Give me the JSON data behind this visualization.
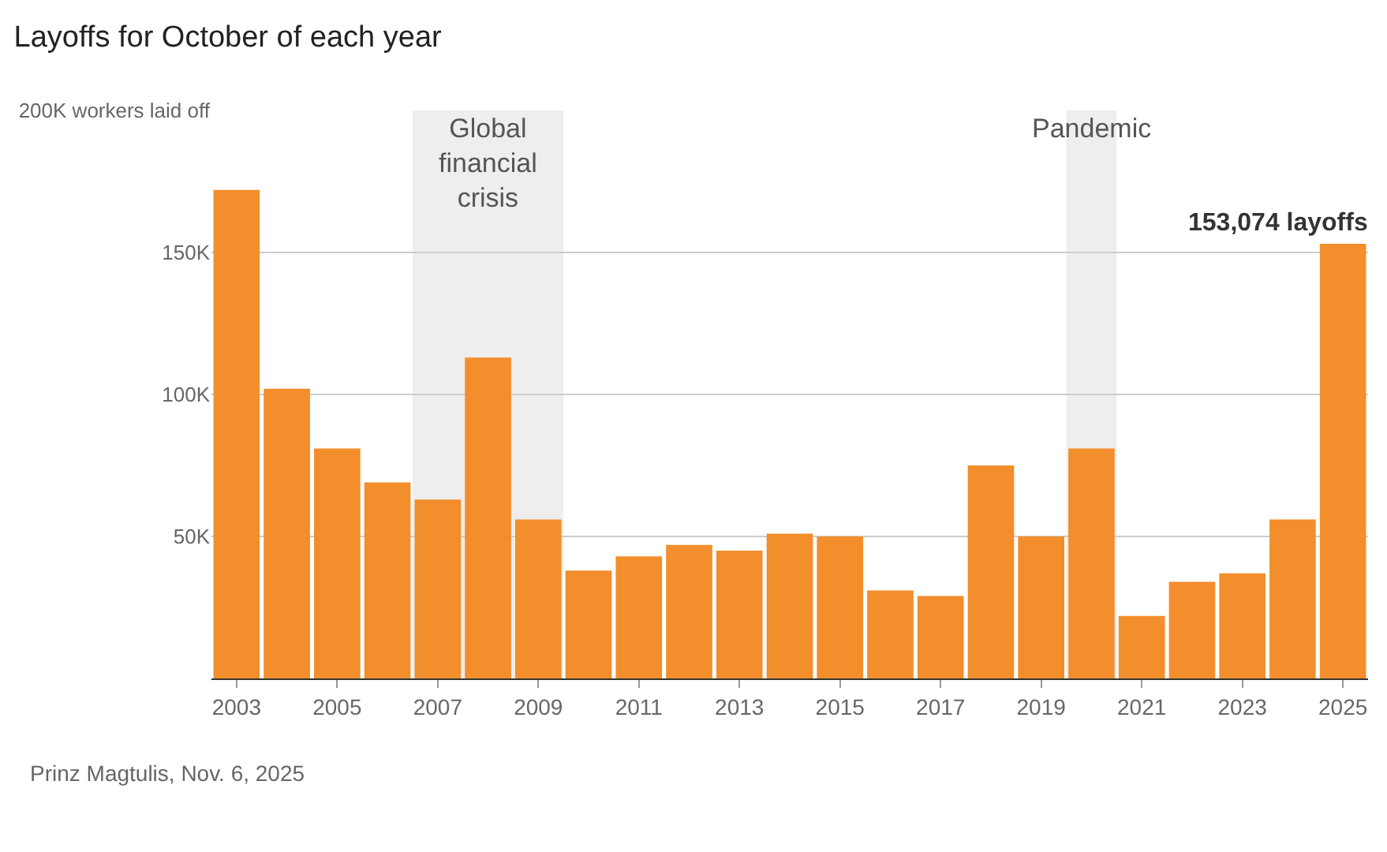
{
  "chart_data": {
    "type": "bar",
    "title": "Layoffs for October of each year",
    "x": [
      2003,
      2004,
      2005,
      2006,
      2007,
      2008,
      2009,
      2010,
      2011,
      2012,
      2013,
      2014,
      2015,
      2016,
      2017,
      2018,
      2019,
      2020,
      2021,
      2022,
      2023,
      2024,
      2025
    ],
    "values": [
      172,
      102,
      81,
      69,
      63,
      113,
      56,
      38,
      43,
      47,
      45,
      51,
      50,
      31,
      29,
      75,
      50,
      81,
      22,
      34,
      37,
      56,
      153.074
    ],
    "color": "#f28e2b",
    "xlim": [
      2002.5,
      2025.5
    ],
    "xticks": [
      2003,
      2005,
      2007,
      2009,
      2011,
      2013,
      2015,
      2017,
      2019,
      2021,
      2023,
      2025
    ],
    "ylim": [
      0,
      200
    ],
    "yticks": [
      {
        "value": 0,
        "label": null
      },
      {
        "value": 50,
        "label": "50K"
      },
      {
        "value": 100,
        "label": "100K"
      },
      {
        "value": 150,
        "label": "150K"
      },
      {
        "value": 200,
        "label": "200K workers laid off"
      }
    ],
    "grid": "y",
    "bands": [
      {
        "axis": "x",
        "from": 2006.5,
        "to": 2009.5,
        "label": "Global\nfinancial\ncrisis",
        "color": "#eeeeee"
      },
      {
        "axis": "x",
        "from": 2019.5,
        "to": 2020.5,
        "label": "Pandemic",
        "color": "#eeeeee"
      }
    ],
    "annotations": [
      {
        "text": "153,074 layoffs",
        "x": 2025,
        "y": 153.074
      },
      "Prinz Magtulis, Nov. 6, 2025"
    ]
  }
}
